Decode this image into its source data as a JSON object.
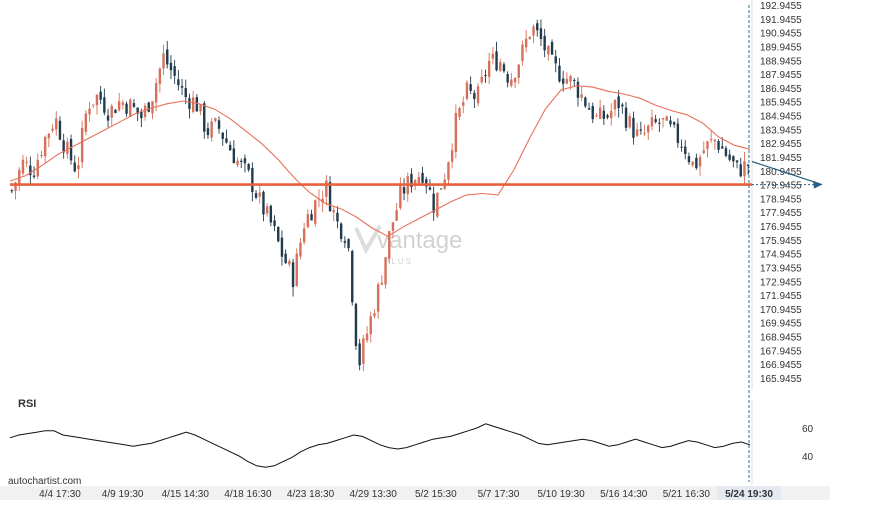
{
  "watermark": {
    "brand": "vantage",
    "sub": "PLUS"
  },
  "footer": {
    "source": "autochartist.com"
  },
  "colors": {
    "up": "#d6705b",
    "down": "#1f3b4d",
    "ma": "#e8715a",
    "level": "#e8603c",
    "axis_text": "#333333",
    "arrow": "#2a5f7f",
    "divider": "#2a6f9a"
  },
  "chart_data": [
    {
      "type": "candlestick",
      "y_tick_labels": [
        "192.9455",
        "191.9455",
        "190.9455",
        "189.9455",
        "188.9455",
        "187.9455",
        "186.9455",
        "185.9455",
        "184.9455",
        "183.9455",
        "182.9455",
        "181.9455",
        "180.9455",
        "179.9455",
        "178.9455",
        "177.9455",
        "176.9455",
        "175.9455",
        "174.9455",
        "173.9455",
        "172.9455",
        "171.9455",
        "170.9455",
        "169.9455",
        "168.9455",
        "167.9455",
        "166.9455",
        "165.9455"
      ],
      "ylim": [
        165.9455,
        192.9455
      ],
      "x_tick_labels": [
        "4/4 17:30",
        "4/9 19:30",
        "4/15 14:30",
        "4/18 16:30",
        "4/23 18:30",
        "4/29 13:30",
        "5/2 15:30",
        "5/7 17:30",
        "5/10 19:30",
        "5/16 14:30",
        "5/21 16:30",
        "5/24 19:30"
      ],
      "x_current_label": "5/24 19:30",
      "support_level": 179.9455,
      "projected_level": 179.9455,
      "close_path": [
        179.5,
        181.5,
        181.0,
        183.2,
        184.8,
        182.5,
        181.0,
        185.8,
        186.4,
        185.2,
        186.0,
        185.6,
        184.8,
        186.5,
        189.2,
        187.8,
        186.3,
        185.9,
        183.8,
        184.2,
        182.8,
        181.4,
        180.4,
        178.5,
        177.0,
        174.8,
        173.2,
        177.2,
        178.6,
        179.8,
        177.2,
        176.2,
        166.8,
        169.8,
        172.8,
        176.8,
        179.4,
        180.4,
        180.9,
        178.4,
        180.8,
        184.4,
        186.6,
        186.2,
        188.8,
        189.0,
        187.6,
        189.2,
        191.4,
        190.2,
        188.4,
        187.8,
        187.2,
        185.9,
        184.7,
        184.9,
        185.9,
        184.4,
        183.2,
        184.1,
        184.5,
        183.7,
        182.9,
        181.2,
        182.6,
        183.2,
        182.1,
        181.0,
        181.4
      ],
      "ma_path": [
        180.2,
        180.6,
        181.3,
        182.1,
        182.7,
        183.3,
        183.9,
        184.5,
        185.1,
        185.5,
        185.8,
        186.0,
        185.8,
        185.4,
        184.7,
        183.8,
        182.9,
        181.8,
        180.5,
        179.4,
        178.6,
        178.2,
        177.6,
        176.8,
        176.2,
        176.9,
        177.5,
        178.1,
        178.7,
        179.2,
        179.3,
        179.2,
        181.0,
        183.3,
        185.4,
        186.8,
        187.1,
        187.0,
        186.7,
        186.5,
        186.2,
        185.7,
        185.3,
        185.0,
        184.4,
        183.4,
        182.8,
        182.5
      ],
      "rsi": {
        "label": "RSI",
        "tick_labels": [
          "60",
          "40"
        ],
        "ylim": [
          20,
          80
        ],
        "values": [
          53,
          55,
          56,
          57,
          58,
          58,
          55,
          54,
          53,
          52,
          51,
          50,
          49,
          48,
          47,
          48,
          49,
          51,
          53,
          55,
          57,
          55,
          52,
          49,
          46,
          43,
          40,
          36,
          33,
          32,
          33,
          36,
          39,
          43,
          46,
          48,
          49,
          51,
          53,
          55,
          54,
          51,
          48,
          46,
          45,
          46,
          48,
          50,
          52,
          53,
          54,
          56,
          58,
          60,
          63,
          61,
          59,
          57,
          55,
          52,
          49,
          48,
          49,
          50,
          51,
          52,
          51,
          49,
          47,
          48,
          50,
          52,
          50,
          48,
          46,
          47,
          49,
          51,
          50,
          48,
          46,
          47,
          49,
          50,
          48
        ]
      }
    }
  ]
}
